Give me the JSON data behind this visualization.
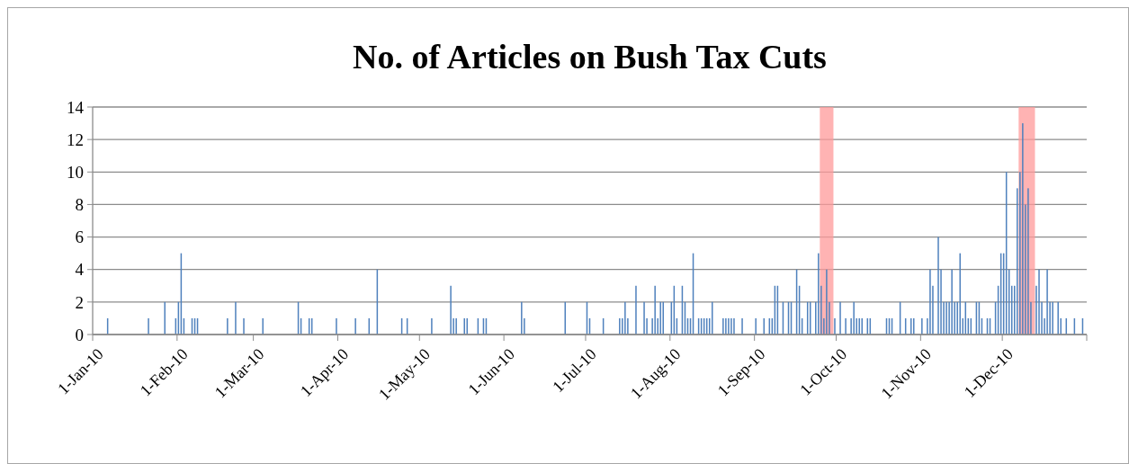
{
  "chart_data": {
    "type": "bar",
    "title": "No. of Articles on Bush Tax Cuts",
    "x": [
      "2010-01-06",
      "2010-01-21",
      "2010-01-27",
      "2010-01-31",
      "2010-02-01",
      "2010-02-02",
      "2010-02-03",
      "2010-02-06",
      "2010-02-07",
      "2010-02-08",
      "2010-02-19",
      "2010-02-22",
      "2010-02-25",
      "2010-03-04",
      "2010-03-17",
      "2010-03-18",
      "2010-03-21",
      "2010-03-22",
      "2010-03-31",
      "2010-04-07",
      "2010-04-12",
      "2010-04-15",
      "2010-04-24",
      "2010-04-26",
      "2010-05-05",
      "2010-05-12",
      "2010-05-13",
      "2010-05-14",
      "2010-05-17",
      "2010-05-18",
      "2010-05-22",
      "2010-05-24",
      "2010-05-25",
      "2010-06-07",
      "2010-06-08",
      "2010-06-23",
      "2010-07-01",
      "2010-07-02",
      "2010-07-07",
      "2010-07-13",
      "2010-07-14",
      "2010-07-15",
      "2010-07-16",
      "2010-07-19",
      "2010-07-22",
      "2010-07-23",
      "2010-07-25",
      "2010-07-26",
      "2010-07-27",
      "2010-07-28",
      "2010-07-29",
      "2010-08-01",
      "2010-08-02",
      "2010-08-03",
      "2010-08-05",
      "2010-08-06",
      "2010-08-07",
      "2010-08-08",
      "2010-08-09",
      "2010-08-11",
      "2010-08-12",
      "2010-08-13",
      "2010-08-14",
      "2010-08-15",
      "2010-08-16",
      "2010-08-20",
      "2010-08-21",
      "2010-08-22",
      "2010-08-23",
      "2010-08-24",
      "2010-08-27",
      "2010-09-01",
      "2010-09-04",
      "2010-09-06",
      "2010-09-07",
      "2010-09-08",
      "2010-09-09",
      "2010-09-11",
      "2010-09-13",
      "2010-09-14",
      "2010-09-16",
      "2010-09-17",
      "2010-09-18",
      "2010-09-20",
      "2010-09-21",
      "2010-09-23",
      "2010-09-24",
      "2010-09-25",
      "2010-09-26",
      "2010-09-27",
      "2010-09-28",
      "2010-09-30",
      "2010-10-02",
      "2010-10-04",
      "2010-10-06",
      "2010-10-07",
      "2010-10-08",
      "2010-10-09",
      "2010-10-10",
      "2010-10-12",
      "2010-10-13",
      "2010-10-19",
      "2010-10-20",
      "2010-10-21",
      "2010-10-24",
      "2010-10-26",
      "2010-10-28",
      "2010-10-29",
      "2010-11-01",
      "2010-11-03",
      "2010-11-04",
      "2010-11-05",
      "2010-11-07",
      "2010-11-08",
      "2010-11-09",
      "2010-11-10",
      "2010-11-11",
      "2010-11-12",
      "2010-11-13",
      "2010-11-14",
      "2010-11-15",
      "2010-11-16",
      "2010-11-17",
      "2010-11-18",
      "2010-11-19",
      "2010-11-21",
      "2010-11-22",
      "2010-11-23",
      "2010-11-25",
      "2010-11-26",
      "2010-11-28",
      "2010-11-29",
      "2010-11-30",
      "2010-12-01",
      "2010-12-02",
      "2010-12-03",
      "2010-12-04",
      "2010-12-05",
      "2010-12-06",
      "2010-12-07",
      "2010-12-08",
      "2010-12-09",
      "2010-12-10",
      "2010-12-11",
      "2010-12-13",
      "2010-12-14",
      "2010-12-15",
      "2010-12-16",
      "2010-12-17",
      "2010-12-18",
      "2010-12-19",
      "2010-12-21",
      "2010-12-22",
      "2010-12-24",
      "2010-12-27",
      "2010-12-30"
    ],
    "values": [
      1,
      1,
      2,
      1,
      2,
      5,
      1,
      1,
      1,
      1,
      1,
      2,
      1,
      1,
      2,
      1,
      1,
      1,
      1,
      1,
      1,
      4,
      1,
      1,
      1,
      3,
      1,
      1,
      1,
      1,
      1,
      1,
      1,
      2,
      1,
      2,
      2,
      1,
      1,
      1,
      1,
      2,
      1,
      3,
      2,
      1,
      1,
      3,
      1,
      2,
      2,
      2,
      3,
      1,
      3,
      2,
      1,
      1,
      5,
      1,
      1,
      1,
      1,
      1,
      2,
      1,
      1,
      1,
      1,
      1,
      1,
      1,
      1,
      1,
      1,
      3,
      3,
      2,
      2,
      2,
      4,
      3,
      1,
      2,
      2,
      2,
      5,
      3,
      1,
      4,
      2,
      1,
      2,
      1,
      1,
      2,
      1,
      1,
      1,
      1,
      1,
      1,
      1,
      1,
      2,
      1,
      1,
      1,
      1,
      1,
      4,
      3,
      6,
      4,
      2,
      2,
      2,
      4,
      2,
      2,
      5,
      1,
      2,
      1,
      1,
      2,
      2,
      1,
      1,
      1,
      2,
      3,
      5,
      5,
      10,
      4,
      3,
      3,
      9,
      10,
      13,
      8,
      9,
      2,
      3,
      4,
      2,
      1,
      4,
      2,
      2,
      2,
      1,
      1,
      1,
      1
    ],
    "color": "#4f81bd",
    "xlim": [
      "2010-01-01",
      "2011-01-01"
    ],
    "xticks": [
      {
        "value": "2010-01-01",
        "label": "1-Jan-10"
      },
      {
        "value": "2010-02-01",
        "label": "1-Feb-10"
      },
      {
        "value": "2010-03-01",
        "label": "1-Mar-10"
      },
      {
        "value": "2010-04-01",
        "label": "1-Apr-10"
      },
      {
        "value": "2010-05-01",
        "label": "1-May-10"
      },
      {
        "value": "2010-06-01",
        "label": "1-Jun-10"
      },
      {
        "value": "2010-07-01",
        "label": "1-Jul-10"
      },
      {
        "value": "2010-08-01",
        "label": "1-Aug-10"
      },
      {
        "value": "2010-09-01",
        "label": "1-Sep-10"
      },
      {
        "value": "2010-10-01",
        "label": "1-Oct-10"
      },
      {
        "value": "2010-11-01",
        "label": "1-Nov-10"
      },
      {
        "value": "2010-12-01",
        "label": "1-Dec-10"
      },
      {
        "value": "2011-01-01",
        "label": null
      }
    ],
    "ylim": [
      0,
      14
    ],
    "yticks": [
      0,
      2,
      4,
      6,
      8,
      10,
      12,
      14
    ],
    "grid": "y",
    "bands": [
      {
        "axis": "x",
        "from": "2010-09-25",
        "to": "2010-09-30",
        "color": "#ff9999"
      },
      {
        "axis": "x",
        "from": "2010-12-07",
        "to": "2010-12-13",
        "color": "#ff9999"
      }
    ]
  }
}
